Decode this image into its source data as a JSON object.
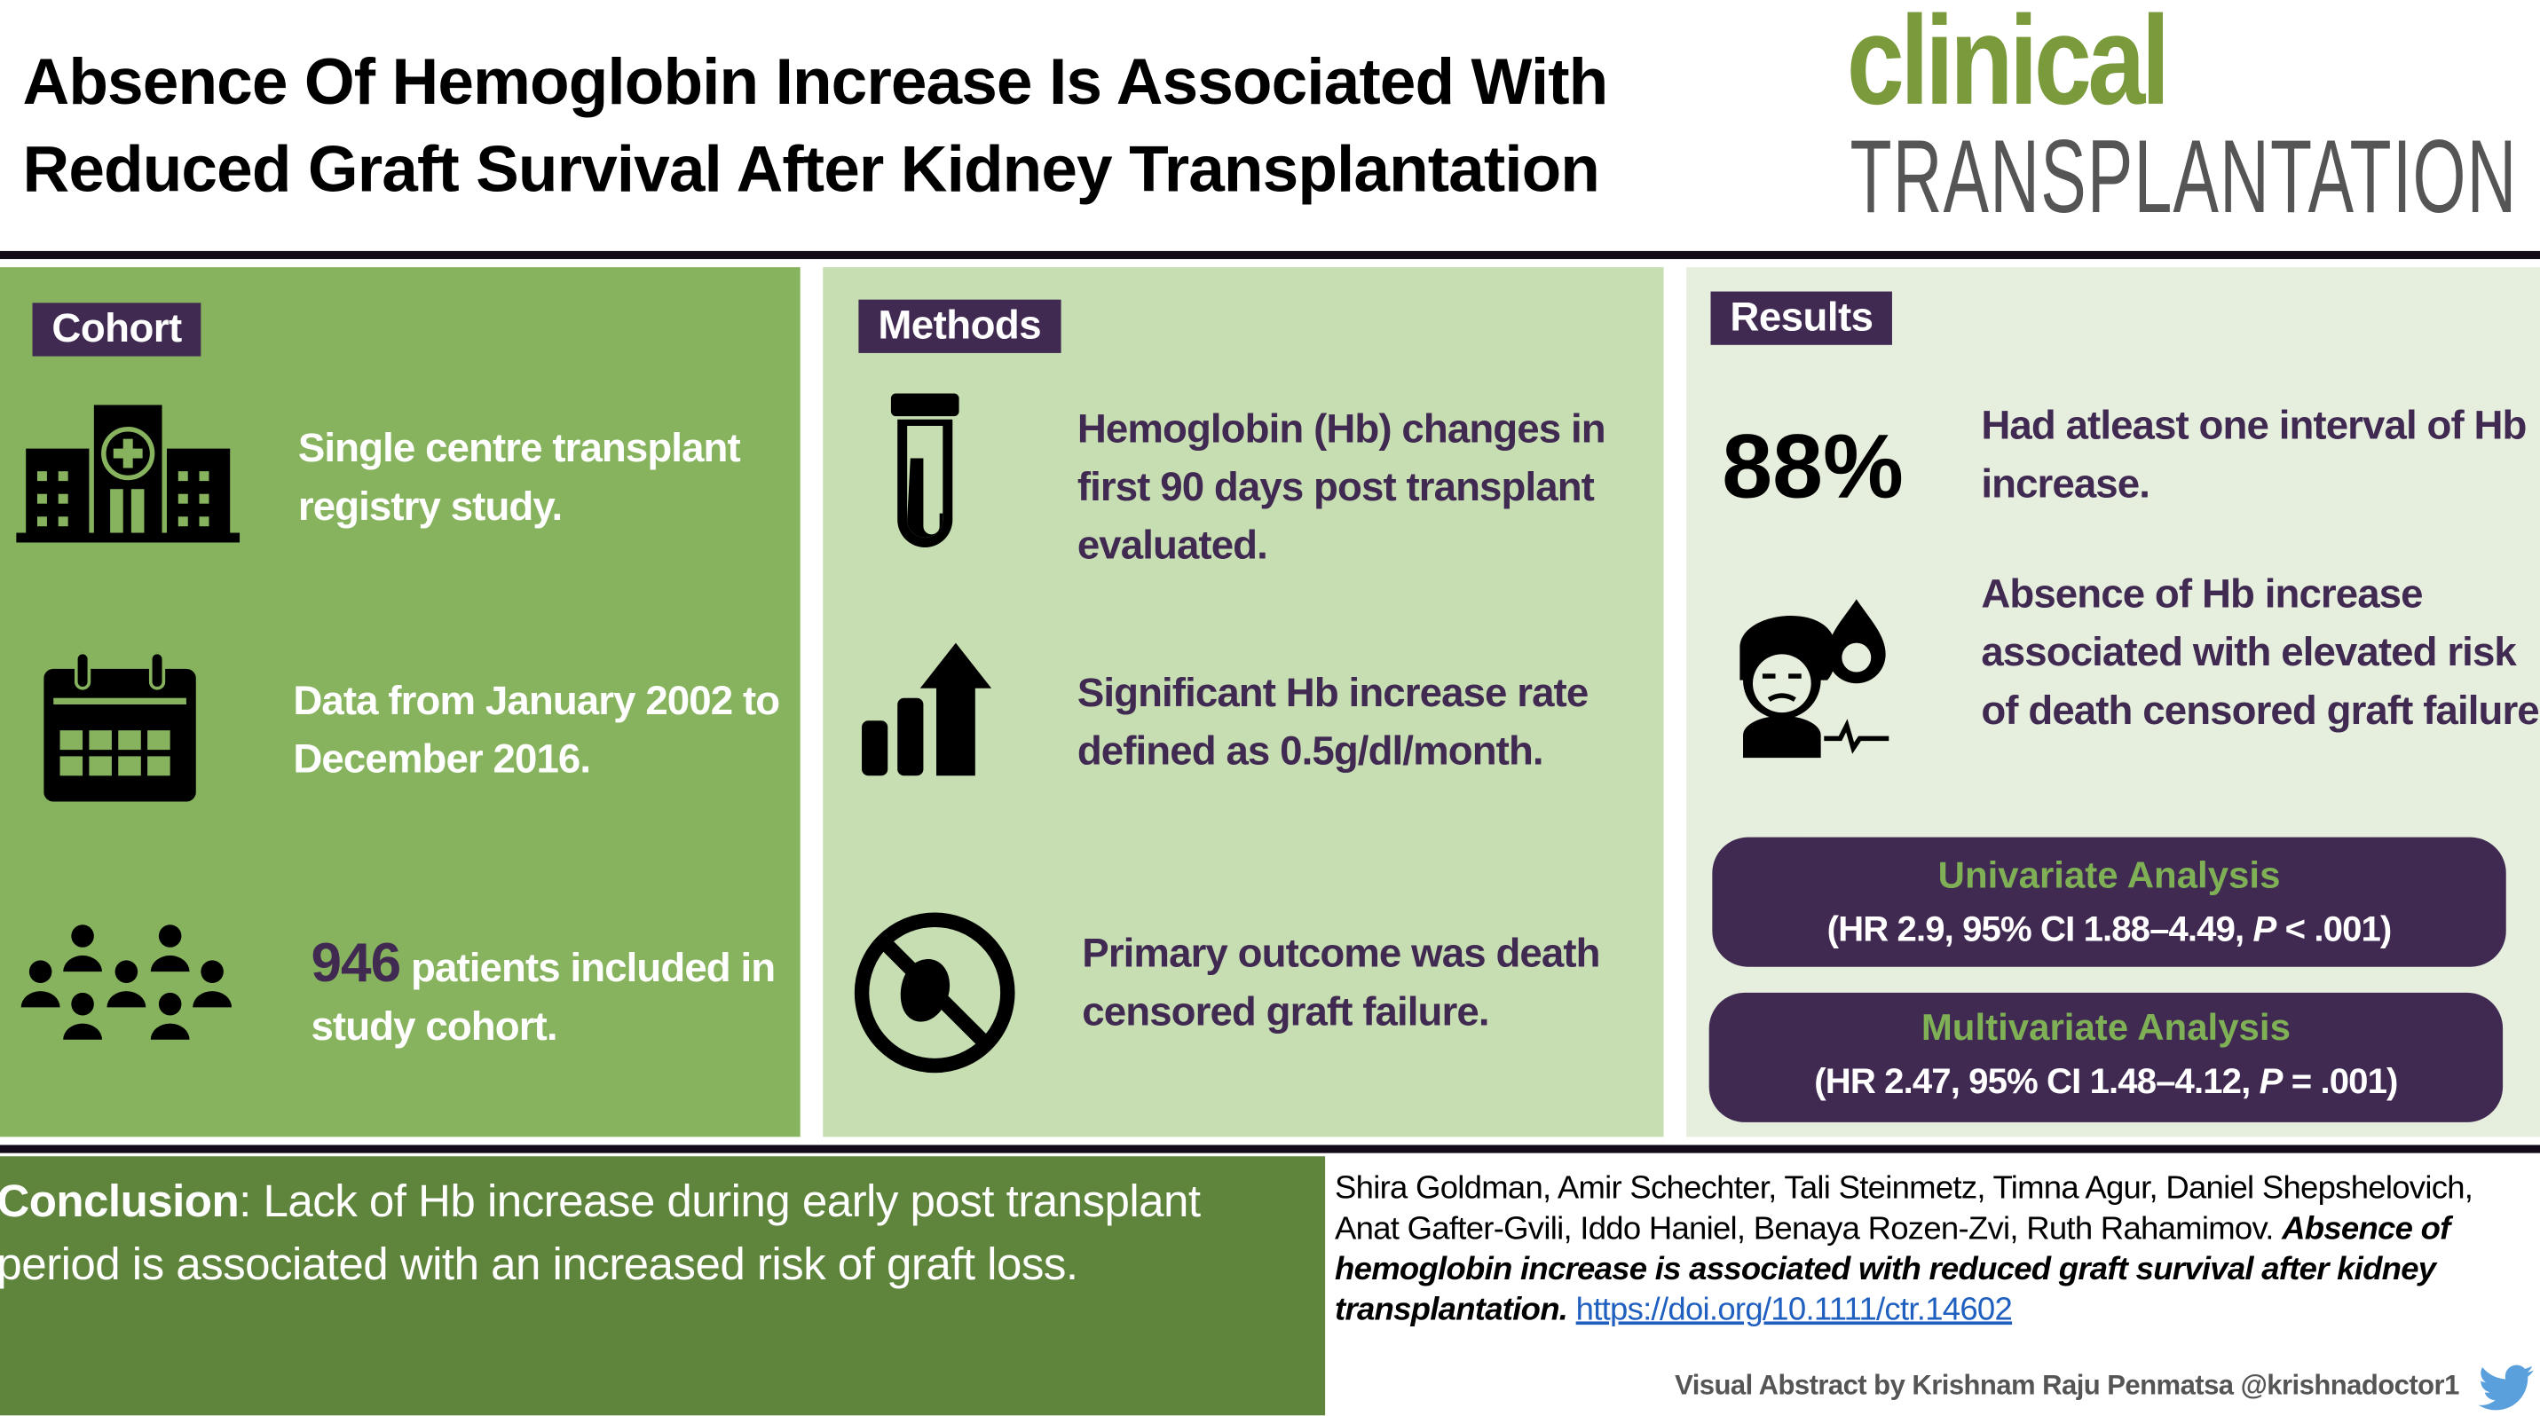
{
  "title": {
    "line1": "Absence Of Hemoglobin Increase Is Associated With",
    "line2": "Reduced Graft Survival After Kidney Transplantation"
  },
  "journal": {
    "word1": "clinical",
    "word2": "TRANSPLANTATION"
  },
  "cohort": {
    "header": "Cohort",
    "item1": "Single centre transplant registry study.",
    "item2": "Data from January 2002 to December 2016.",
    "item3_number": "946",
    "item3_text": " patients included in study cohort."
  },
  "methods": {
    "header": "Methods",
    "item1": "Hemoglobin (Hb) changes in first 90 days post transplant evaluated.",
    "item2": "Significant Hb increase rate defined as 0.5g/dl/month.",
    "item3": "Primary outcome was death censored graft failure."
  },
  "results": {
    "header": "Results",
    "percent": "88%",
    "item1": "Had atleast one interval of Hb increase.",
    "item2": "Absence of Hb increase associated with elevated risk of death censored graft failure",
    "univariate": {
      "title": "Univariate Analysis",
      "pre": "(HR 2.9, 95% CI 1.88–4.49, ",
      "p": "P",
      "post": " < .001)"
    },
    "multivariate": {
      "title": "Multivariate Analysis",
      "pre": "(HR 2.47, 95% CI 1.48–4.12, ",
      "p": "P",
      "post": " = .001)"
    }
  },
  "conclusion": {
    "label": "Conclusion",
    "text": ": Lack of Hb increase during early post transplant period is associated with an increased risk of graft loss."
  },
  "citation": {
    "authors": "Shira Goldman, Amir Schechter, Tali Steinmetz, Timna Agur, Daniel Shepshelovich, Anat Gafter-Gvili, Iddo Haniel, Benaya Rozen-Zvi, Ruth Rahamimov. ",
    "paper": "Absence of hemoglobin increase is associated with reduced graft survival after kidney transplantation.",
    "doi": "https://doi.org/10.1111/ctr.14602"
  },
  "credit": "Visual Abstract by Krishnam Raju Penmatsa @krishnadoctor1",
  "colors": {
    "cohort": "#87b35f",
    "methods": "#c7deb2",
    "results": "#e6efdd",
    "purple": "#412a52",
    "conclusion": "#5f843c",
    "logo_green": "#7a9a3c",
    "twitter": "#5aa0dc"
  }
}
